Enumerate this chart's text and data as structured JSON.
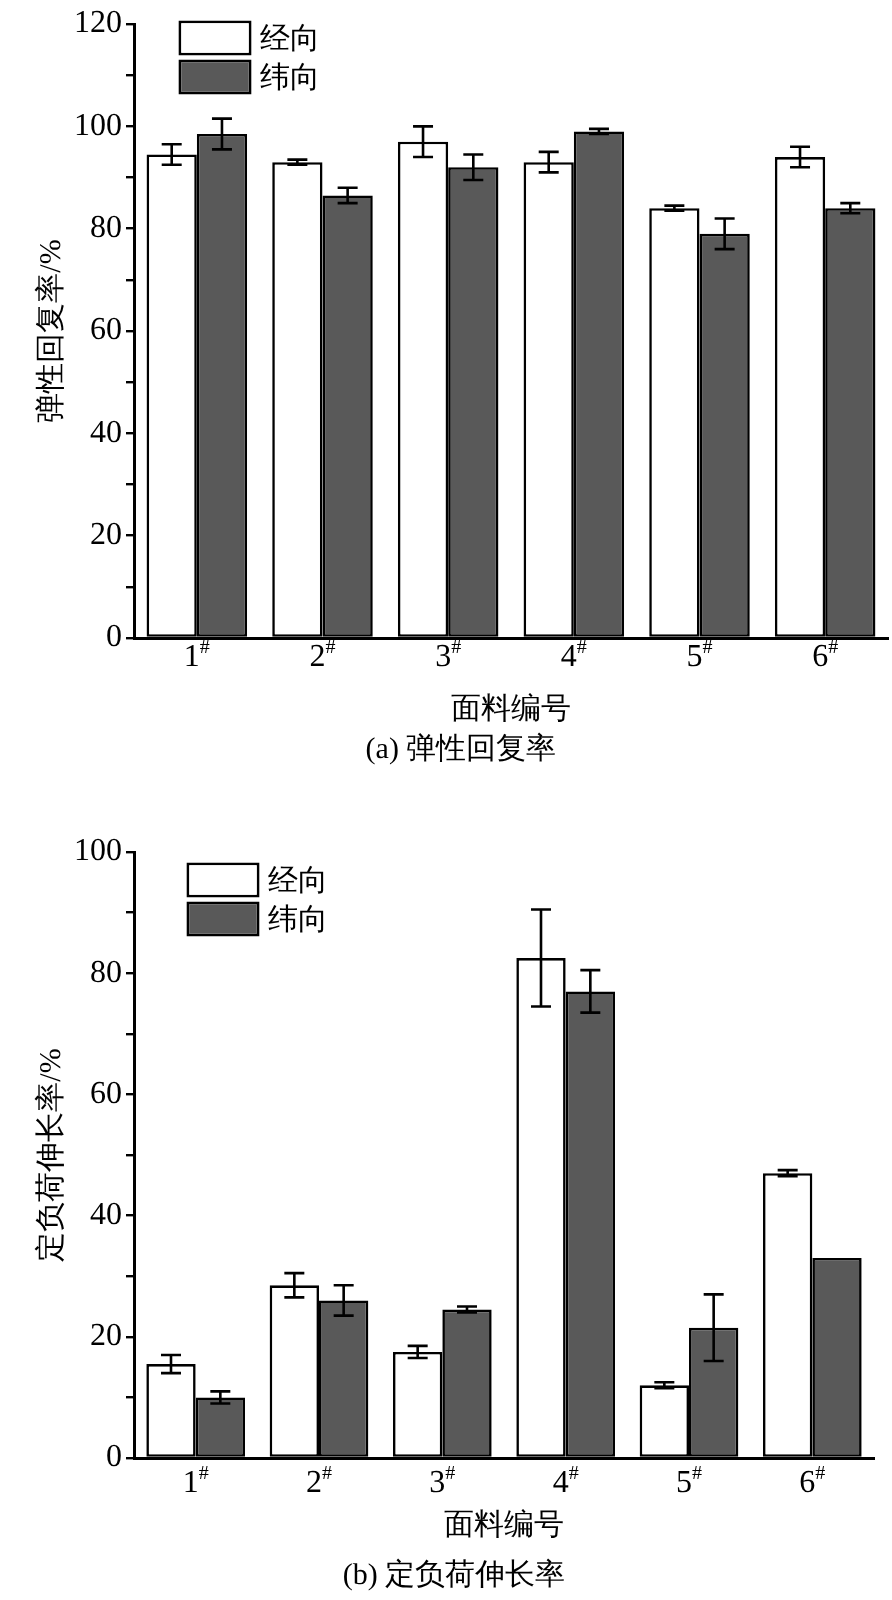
{
  "chart_data": [
    {
      "type": "bar",
      "title": "(a) 弹性回复率",
      "xlabel": "面料编号",
      "ylabel": "弹性回复率/%",
      "categories": [
        "1$^{#}$",
        "2$^{#}$",
        "3$^{#}$",
        "4$^{#}$",
        "5$^{#}$",
        "6$^{#}$"
      ],
      "series": [
        {
          "name": "经向",
          "color": "#ffffff",
          "values": [
            94.5,
            93,
            97,
            93,
            84,
            94
          ],
          "errors": [
            2,
            0.5,
            3,
            2,
            0.5,
            2
          ]
        },
        {
          "name": "纬向",
          "color": "#595959",
          "values": [
            98.5,
            86.5,
            92,
            99,
            79,
            84
          ],
          "errors": [
            3,
            1.5,
            2.5,
            0.5,
            3,
            1
          ]
        }
      ],
      "ylim": [
        0,
        120
      ],
      "yticks": [
        0,
        {
          "value": 10,
          "label": null
        },
        20,
        {
          "value": 30,
          "label": null
        },
        40,
        {
          "value": 50,
          "label": null
        },
        60,
        {
          "value": 70,
          "label": null
        },
        80,
        {
          "value": 90,
          "label": null
        },
        100,
        {
          "value": 110,
          "label": null
        },
        120
      ],
      "legend": "top left"
    },
    {
      "type": "bar",
      "title": "(b) 定负荷伸长率",
      "xlabel": "面料编号",
      "ylabel": "定负荷伸长率/%",
      "categories": [
        "1$^{#}$",
        "2$^{#}$",
        "3$^{#}$",
        "4$^{#}$",
        "5$^{#}$",
        "6$^{#}$"
      ],
      "series": [
        {
          "name": "经向",
          "color": "#ffffff",
          "values": [
            15.5,
            28.5,
            17.5,
            82.5,
            12,
            47
          ],
          "errors": [
            1.5,
            2,
            1,
            8,
            0.5,
            0.5
          ]
        },
        {
          "name": "纬向",
          "color": "#595959",
          "values": [
            10,
            26,
            24.5,
            77,
            21.5,
            33
          ],
          "errors": [
            1,
            2.5,
            0.5,
            3.5,
            5.5,
            null
          ]
        }
      ],
      "ylim": [
        0,
        100
      ],
      "yticks": [
        0,
        {
          "value": 10,
          "label": null
        },
        20,
        {
          "value": 30,
          "label": null
        },
        40,
        {
          "value": 50,
          "label": null
        },
        60,
        {
          "value": 70,
          "label": null
        },
        80,
        {
          "value": 90,
          "label": null
        },
        100
      ],
      "legend": "top left"
    }
  ]
}
